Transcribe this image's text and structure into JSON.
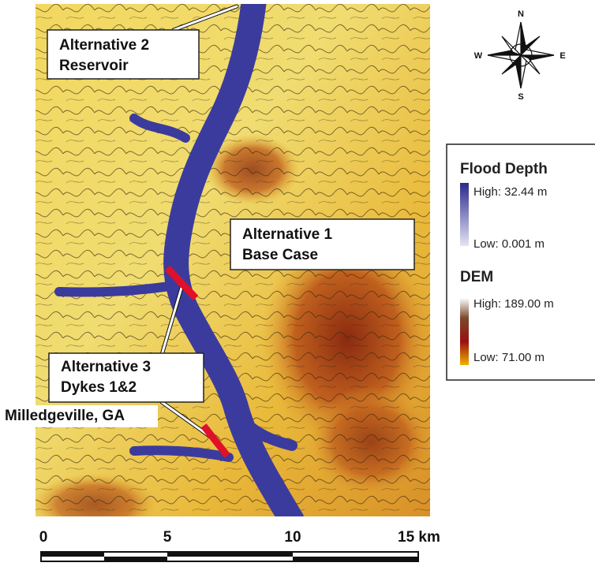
{
  "callouts": [
    {
      "lines": [
        "Alternative 2",
        "Reservoir"
      ]
    },
    {
      "lines": [
        "Alternative 1",
        "Base Case"
      ]
    },
    {
      "lines": [
        "Alternative 3",
        "Dykes 1&2"
      ]
    }
  ],
  "place_label": "Milledgeville, GA",
  "compass": {
    "n": "N",
    "s": "S",
    "e": "E",
    "w": "W"
  },
  "legend": {
    "flood_depth": {
      "title": "Flood Depth",
      "high": "High: 32.44 m",
      "low": "Low: 0.001 m"
    },
    "dem": {
      "title": "DEM",
      "high": "High: 189.00 m",
      "low": "Low: 71.00 m"
    }
  },
  "scale_bar": {
    "labels": [
      "0",
      "5",
      "10",
      "15 km"
    ]
  }
}
